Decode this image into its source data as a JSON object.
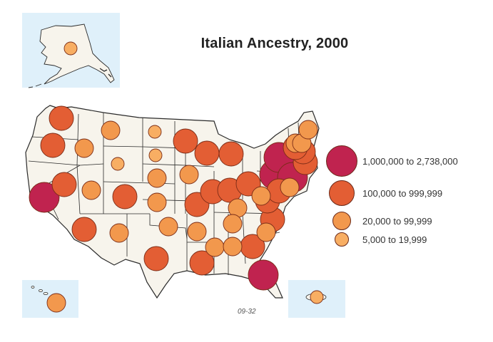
{
  "title": "Italian Ancestry, 2000",
  "figure_code": "09-32",
  "colors": {
    "tier1": "#c0234f",
    "tier2": "#e35e34",
    "tier3": "#f2984d",
    "tier4": "#f8ae63",
    "land": "#f7f4ec",
    "water": "#dff0fa",
    "border": "#2a2a2a"
  },
  "legend": [
    {
      "tier": 1,
      "label": "1,000,000 to 2,738,000"
    },
    {
      "tier": 2,
      "label": "100,000 to 999,999"
    },
    {
      "tier": 3,
      "label": "20,000 to 99,999"
    },
    {
      "tier": 4,
      "label": "5,000 to 19,999"
    }
  ],
  "insets": [
    "alaska",
    "hawaii",
    "puerto-rico"
  ],
  "map_data": {
    "symbols": [
      {
        "area": "WA",
        "tier": 2
      },
      {
        "area": "OR",
        "tier": 2
      },
      {
        "area": "CA",
        "tier": 1
      },
      {
        "area": "NV",
        "tier": 2
      },
      {
        "area": "ID",
        "tier": 3
      },
      {
        "area": "MT",
        "tier": 3
      },
      {
        "area": "WY",
        "tier": 4
      },
      {
        "area": "UT",
        "tier": 3
      },
      {
        "area": "AZ",
        "tier": 2
      },
      {
        "area": "CO",
        "tier": 2
      },
      {
        "area": "NM",
        "tier": 3
      },
      {
        "area": "ND",
        "tier": 4
      },
      {
        "area": "SD",
        "tier": 4
      },
      {
        "area": "NE",
        "tier": 3
      },
      {
        "area": "KS",
        "tier": 3
      },
      {
        "area": "OK",
        "tier": 3
      },
      {
        "area": "TX",
        "tier": 2
      },
      {
        "area": "MN",
        "tier": 2
      },
      {
        "area": "IA",
        "tier": 3
      },
      {
        "area": "MO",
        "tier": 2
      },
      {
        "area": "AR",
        "tier": 3
      },
      {
        "area": "LA",
        "tier": 2
      },
      {
        "area": "WI",
        "tier": 2
      },
      {
        "area": "IL",
        "tier": 2
      },
      {
        "area": "MI",
        "tier": 2
      },
      {
        "area": "IN",
        "tier": 2
      },
      {
        "area": "OH",
        "tier": 2
      },
      {
        "area": "KY",
        "tier": 3
      },
      {
        "area": "TN",
        "tier": 3
      },
      {
        "area": "MS",
        "tier": 3
      },
      {
        "area": "AL",
        "tier": 3
      },
      {
        "area": "GA",
        "tier": 2
      },
      {
        "area": "FL",
        "tier": 1
      },
      {
        "area": "SC",
        "tier": 3
      },
      {
        "area": "NC",
        "tier": 2
      },
      {
        "area": "VA",
        "tier": 2
      },
      {
        "area": "WV",
        "tier": 3
      },
      {
        "area": "PA",
        "tier": 1
      },
      {
        "area": "NY",
        "tier": 1
      },
      {
        "area": "NJ",
        "tier": 1
      },
      {
        "area": "MD",
        "tier": 2
      },
      {
        "area": "DE",
        "tier": 3
      },
      {
        "area": "CT",
        "tier": 2
      },
      {
        "area": "RI",
        "tier": 2
      },
      {
        "area": "MA",
        "tier": 2
      },
      {
        "area": "VT",
        "tier": 3
      },
      {
        "area": "NH",
        "tier": 3
      },
      {
        "area": "ME",
        "tier": 3
      },
      {
        "area": "AK",
        "tier": 4
      },
      {
        "area": "HI",
        "tier": 3
      },
      {
        "area": "PR",
        "tier": 4
      }
    ]
  }
}
